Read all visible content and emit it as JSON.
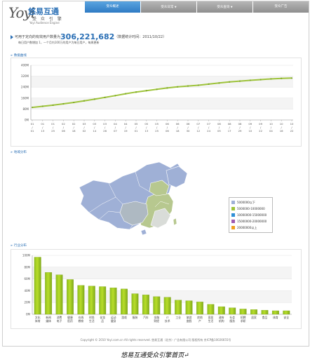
{
  "header": {
    "logo": {
      "mark": "Yoyi",
      "name_cn": "悠易互通",
      "tagline_cn": "受 众 引 擎",
      "name_en": "Yoyi Audience Engine"
    }
  },
  "nav": {
    "tabs": [
      {
        "label": "受众概述",
        "active": true,
        "dropdown": false
      },
      {
        "label": "受众日常",
        "active": false,
        "dropdown": true
      },
      {
        "label": "受众查询",
        "active": false,
        "dropdown": true
      },
      {
        "label": "受众广告",
        "active": false,
        "dropdown": false
      }
    ]
  },
  "summary": {
    "prefix": "可用于定向的有效用户数量为",
    "count": "306,221,682",
    "updated": "（数据统计时间：2011/10/22）",
    "note": "每日用户数增加 1，一个月内100万的用户为每日用户，每周更新"
  },
  "sections": {
    "trend": "数据曲线",
    "region": "地域分布",
    "industry": "行业分布"
  },
  "map": {
    "colors": {
      "low": "#9fb0d6",
      "mid": "#b7c88f",
      "high": "#d9dcd8"
    },
    "legend": [
      {
        "label": "5000000以下",
        "color": "#9fb0d6"
      },
      {
        "label": "5000000-10000000",
        "color": "#9ec33a"
      },
      {
        "label": "10000000-15000000",
        "color": "#2f8fd6"
      },
      {
        "label": "15000000-20000000",
        "color": "#a05ab0"
      },
      {
        "label": "20000000以上",
        "color": "#f0a020"
      }
    ]
  },
  "chart_data": [
    {
      "type": "line",
      "title": "",
      "ylabel": "",
      "ylim": [
        0,
        400
      ],
      "y_ticks": [
        "0M",
        "80M",
        "160M",
        "240M",
        "320M",
        "400M"
      ],
      "line_color": "#9ec33a",
      "x": [
        "01/01",
        "01/13",
        "01/25",
        "02/06",
        "02/18",
        "03/02",
        "03/14",
        "03/26",
        "04/07",
        "04/19",
        "05/01",
        "05/13",
        "05/25",
        "06/06",
        "06/18",
        "06/30",
        "07/12",
        "07/24",
        "08/05",
        "08/17",
        "08/29",
        "09/10",
        "09/22",
        "10/04",
        "10/16",
        "10/22"
      ],
      "series": [
        {
          "name": "",
          "values": [
            92,
            100,
            108,
            118,
            128,
            140,
            152,
            165,
            178,
            192,
            204,
            214,
            224,
            234,
            242,
            248,
            254,
            262,
            270,
            278,
            284,
            290,
            295,
            300,
            304,
            306
          ]
        }
      ]
    },
    {
      "type": "bar",
      "title": "",
      "ylabel": "",
      "ylim": [
        0,
        100
      ],
      "y_ticks": [
        "0M",
        "20M",
        "40M",
        "60M",
        "80M",
        "100M"
      ],
      "bar_color": "#b8dd2a",
      "categories": [
        "文化体育",
        "新闻媒体",
        "消费电子",
        "健康医药",
        "在线教育",
        "时尚生活",
        "化妆品",
        "运动健身",
        "游戏",
        "服装",
        "汽车",
        "金融财经",
        "IT技术",
        "工业",
        "旅游度假",
        "房地产",
        "家居生活",
        "政府机构",
        "社会服务",
        "招聘求职",
        "居家",
        "食品",
        "体育",
        "安全"
      ],
      "values": [
        97,
        71,
        67,
        59,
        49,
        48,
        47,
        45,
        43,
        35,
        33,
        30,
        29,
        24,
        23,
        21,
        17,
        13,
        11,
        9,
        8,
        7,
        6,
        6
      ]
    }
  ],
  "footer": {
    "text": "Copyright © 2010 Yoyi.com.cn All rights reserved. 悠易互通（北京）广告有限公司 版权所有 京ICP备10026655号"
  },
  "caption": "悠易互通受众引擎首页↵"
}
